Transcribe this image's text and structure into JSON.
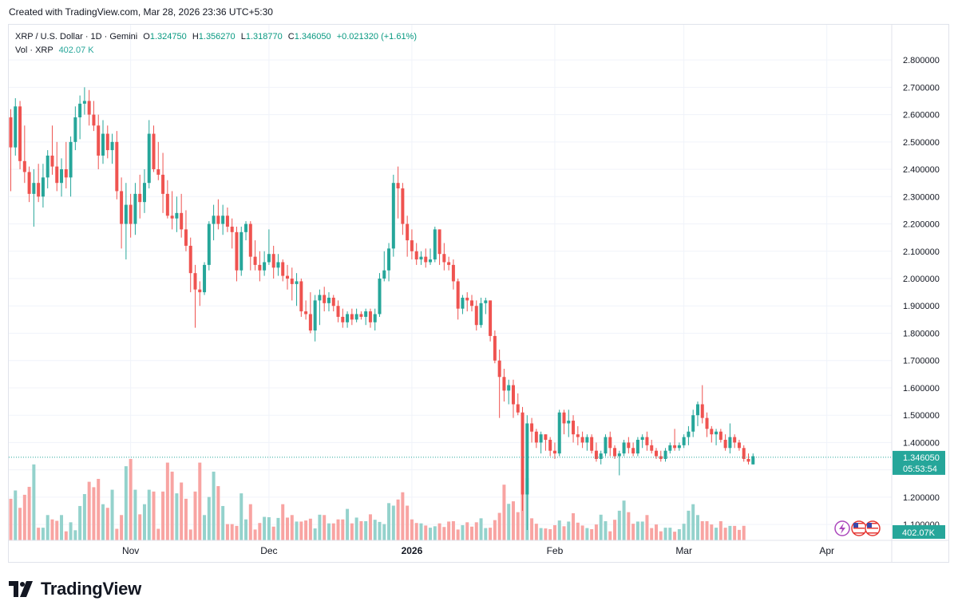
{
  "header": {
    "created": "Created with TradingView.com, Mar 28, 2026 23:36 UTC+5:30"
  },
  "legend": {
    "title": "XRP / U.S. Dollar · 1D · Gemini",
    "open_label": "O",
    "open": "1.324750",
    "high_label": "H",
    "high": "1.356270",
    "low_label": "L",
    "low": "1.318770",
    "close_label": "C",
    "close": "1.346050",
    "change": "+0.021320 (+1.61%)",
    "vol_label": "Vol · XRP",
    "vol_value": "402.07 K"
  },
  "footer": {
    "brand": "TradingView"
  },
  "colors": {
    "up": "#26a69a",
    "down": "#ef5350",
    "up_vol": "#94d2cc",
    "down_vol": "#f8a4a2",
    "grid": "#f0f3fa",
    "price_line": "#26a69a"
  },
  "icons": [
    "lightning-icon",
    "us-flag-icon",
    "us-flag-icon"
  ],
  "chart_data": {
    "type": "candlestick",
    "symbol": "XRP / U.S. Dollar",
    "interval": "1D",
    "exchange": "Gemini",
    "ylim": [
      1.0,
      2.85
    ],
    "y_ticks": [
      "2.800000",
      "2.700000",
      "2.600000",
      "2.500000",
      "2.400000",
      "2.300000",
      "2.200000",
      "2.100000",
      "2.000000",
      "1.900000",
      "1.800000",
      "1.700000",
      "1.600000",
      "1.500000",
      "1.400000",
      "1.300000",
      "1.200000",
      "1.100000"
    ],
    "x_ticks": [
      {
        "label": "Nov",
        "date": "2025-11-01",
        "bold": false
      },
      {
        "label": "Dec",
        "date": "2025-12-01",
        "bold": false
      },
      {
        "label": "2026",
        "date": "2026-01-01",
        "bold": true
      },
      {
        "label": "Feb",
        "date": "2026-02-01",
        "bold": false
      },
      {
        "label": "Mar",
        "date": "2026-03-01",
        "bold": false
      },
      {
        "label": "Apr",
        "date": "2026-04-01",
        "bold": false
      }
    ],
    "first_date": "2025-10-06",
    "last_price": "1.346050",
    "countdown": "05:53:54",
    "volume_label": "402.07K",
    "volume_max_k": 3200,
    "candles": [
      [
        2.59,
        2.62,
        2.32,
        2.48
      ],
      [
        2.48,
        2.66,
        2.45,
        2.63
      ],
      [
        2.63,
        2.65,
        2.4,
        2.43
      ],
      [
        2.43,
        2.56,
        2.35,
        2.39
      ],
      [
        2.39,
        2.41,
        2.28,
        2.31
      ],
      [
        2.31,
        2.4,
        2.19,
        2.35
      ],
      [
        2.35,
        2.42,
        2.28,
        2.3
      ],
      [
        2.3,
        2.42,
        2.26,
        2.37
      ],
      [
        2.37,
        2.47,
        2.33,
        2.45
      ],
      [
        2.45,
        2.56,
        2.38,
        2.41
      ],
      [
        2.41,
        2.5,
        2.32,
        2.35
      ],
      [
        2.35,
        2.44,
        2.3,
        2.4
      ],
      [
        2.4,
        2.5,
        2.33,
        2.37
      ],
      [
        2.37,
        2.52,
        2.3,
        2.5
      ],
      [
        2.5,
        2.63,
        2.47,
        2.59
      ],
      [
        2.59,
        2.67,
        2.51,
        2.64
      ],
      [
        2.64,
        2.7,
        2.6,
        2.65
      ],
      [
        2.65,
        2.69,
        2.56,
        2.6
      ],
      [
        2.6,
        2.65,
        2.54,
        2.56
      ],
      [
        2.56,
        2.6,
        2.4,
        2.45
      ],
      [
        2.45,
        2.58,
        2.42,
        2.53
      ],
      [
        2.53,
        2.56,
        2.44,
        2.47
      ],
      [
        2.47,
        2.53,
        2.42,
        2.5
      ],
      [
        2.5,
        2.54,
        2.29,
        2.32
      ],
      [
        2.32,
        2.37,
        2.11,
        2.2
      ],
      [
        2.2,
        2.35,
        2.07,
        2.27
      ],
      [
        2.27,
        2.31,
        2.15,
        2.2
      ],
      [
        2.2,
        2.35,
        2.16,
        2.31
      ],
      [
        2.31,
        2.38,
        2.22,
        2.28
      ],
      [
        2.28,
        2.4,
        2.24,
        2.35
      ],
      [
        2.35,
        2.58,
        2.33,
        2.53
      ],
      [
        2.53,
        2.56,
        2.39,
        2.4
      ],
      [
        2.4,
        2.5,
        2.36,
        2.38
      ],
      [
        2.38,
        2.46,
        2.24,
        2.31
      ],
      [
        2.31,
        2.36,
        2.22,
        2.23
      ],
      [
        2.23,
        2.32,
        2.18,
        2.22
      ],
      [
        2.22,
        2.3,
        2.17,
        2.24
      ],
      [
        2.24,
        2.31,
        2.15,
        2.18
      ],
      [
        2.18,
        2.25,
        2.1,
        2.12
      ],
      [
        2.12,
        2.15,
        1.95,
        2.02
      ],
      [
        2.02,
        2.05,
        1.82,
        1.96
      ],
      [
        1.96,
        1.99,
        1.9,
        1.95
      ],
      [
        1.95,
        2.06,
        1.94,
        2.05
      ],
      [
        2.05,
        2.21,
        2.03,
        2.2
      ],
      [
        2.2,
        2.27,
        2.14,
        2.23
      ],
      [
        2.23,
        2.29,
        2.18,
        2.2
      ],
      [
        2.2,
        2.27,
        2.16,
        2.23
      ],
      [
        2.23,
        2.26,
        2.17,
        2.19
      ],
      [
        2.19,
        2.22,
        2.11,
        2.17
      ],
      [
        2.17,
        2.19,
        1.99,
        2.03
      ],
      [
        2.03,
        2.19,
        2.01,
        2.17
      ],
      [
        2.17,
        2.21,
        2.14,
        2.2
      ],
      [
        2.2,
        2.21,
        2.03,
        2.08
      ],
      [
        2.08,
        2.14,
        2.03,
        2.05
      ],
      [
        2.05,
        2.1,
        1.99,
        2.03
      ],
      [
        2.03,
        2.1,
        2.01,
        2.06
      ],
      [
        2.06,
        2.18,
        2.05,
        2.09
      ],
      [
        2.09,
        2.12,
        2.0,
        2.04
      ],
      [
        2.04,
        2.09,
        2.01,
        2.06
      ],
      [
        2.06,
        2.07,
        1.99,
        2.01
      ],
      [
        2.01,
        2.05,
        1.96,
        2.0
      ],
      [
        2.0,
        2.04,
        1.92,
        1.98
      ],
      [
        1.98,
        2.02,
        1.9,
        1.99
      ],
      [
        1.99,
        2.0,
        1.86,
        1.88
      ],
      [
        1.88,
        1.92,
        1.85,
        1.87
      ],
      [
        1.87,
        1.95,
        1.8,
        1.81
      ],
      [
        1.81,
        1.94,
        1.77,
        1.92
      ],
      [
        1.92,
        1.96,
        1.83,
        1.94
      ],
      [
        1.94,
        1.97,
        1.88,
        1.91
      ],
      [
        1.91,
        1.95,
        1.88,
        1.93
      ],
      [
        1.93,
        1.94,
        1.88,
        1.9
      ],
      [
        1.9,
        1.92,
        1.84,
        1.86
      ],
      [
        1.86,
        1.89,
        1.82,
        1.84
      ],
      [
        1.84,
        1.88,
        1.82,
        1.87
      ],
      [
        1.87,
        1.89,
        1.83,
        1.85
      ],
      [
        1.85,
        1.89,
        1.84,
        1.87
      ],
      [
        1.87,
        1.88,
        1.85,
        1.86
      ],
      [
        1.86,
        1.89,
        1.83,
        1.88
      ],
      [
        1.88,
        1.89,
        1.82,
        1.84
      ],
      [
        1.84,
        1.89,
        1.81,
        1.87
      ],
      [
        1.87,
        2.02,
        1.86,
        2.0
      ],
      [
        2.0,
        2.1,
        1.99,
        2.03
      ],
      [
        2.03,
        2.13,
        1.99,
        2.11
      ],
      [
        2.11,
        2.38,
        2.08,
        2.35
      ],
      [
        2.35,
        2.41,
        2.22,
        2.33
      ],
      [
        2.33,
        2.35,
        2.16,
        2.2
      ],
      [
        2.2,
        2.23,
        2.08,
        2.14
      ],
      [
        2.14,
        2.18,
        2.07,
        2.1
      ],
      [
        2.1,
        2.13,
        2.05,
        2.07
      ],
      [
        2.07,
        2.1,
        2.05,
        2.08
      ],
      [
        2.08,
        2.11,
        2.04,
        2.06
      ],
      [
        2.06,
        2.11,
        2.05,
        2.07
      ],
      [
        2.07,
        2.19,
        2.06,
        2.18
      ],
      [
        2.18,
        2.18,
        2.05,
        2.09
      ],
      [
        2.09,
        2.13,
        2.03,
        2.06
      ],
      [
        2.06,
        2.08,
        2.03,
        2.05
      ],
      [
        2.05,
        2.07,
        1.96,
        1.99
      ],
      [
        1.99,
        2.0,
        1.85,
        1.89
      ],
      [
        1.89,
        1.94,
        1.87,
        1.93
      ],
      [
        1.93,
        1.95,
        1.88,
        1.92
      ],
      [
        1.92,
        1.94,
        1.88,
        1.9
      ],
      [
        1.9,
        1.92,
        1.81,
        1.83
      ],
      [
        1.83,
        1.93,
        1.82,
        1.91
      ],
      [
        1.91,
        1.93,
        1.87,
        1.92
      ],
      [
        1.92,
        1.92,
        1.77,
        1.79
      ],
      [
        1.79,
        1.81,
        1.69,
        1.7
      ],
      [
        1.7,
        1.74,
        1.49,
        1.64
      ],
      [
        1.64,
        1.67,
        1.55,
        1.59
      ],
      [
        1.59,
        1.63,
        1.54,
        1.61
      ],
      [
        1.61,
        1.63,
        1.49,
        1.54
      ],
      [
        1.54,
        1.58,
        1.5,
        1.51
      ],
      [
        1.51,
        1.53,
        1.15,
        1.21
      ],
      [
        1.21,
        1.5,
        1.08,
        1.47
      ],
      [
        1.47,
        1.49,
        1.4,
        1.44
      ],
      [
        1.44,
        1.45,
        1.38,
        1.4
      ],
      [
        1.4,
        1.44,
        1.36,
        1.43
      ],
      [
        1.43,
        1.43,
        1.37,
        1.41
      ],
      [
        1.41,
        1.42,
        1.35,
        1.37
      ],
      [
        1.37,
        1.4,
        1.34,
        1.36
      ],
      [
        1.36,
        1.52,
        1.35,
        1.51
      ],
      [
        1.51,
        1.52,
        1.43,
        1.47
      ],
      [
        1.47,
        1.52,
        1.42,
        1.48
      ],
      [
        1.48,
        1.5,
        1.4,
        1.43
      ],
      [
        1.43,
        1.46,
        1.39,
        1.42
      ],
      [
        1.42,
        1.44,
        1.38,
        1.4
      ],
      [
        1.4,
        1.43,
        1.37,
        1.42
      ],
      [
        1.42,
        1.43,
        1.36,
        1.37
      ],
      [
        1.37,
        1.4,
        1.33,
        1.34
      ],
      [
        1.34,
        1.37,
        1.32,
        1.36
      ],
      [
        1.36,
        1.43,
        1.35,
        1.42
      ],
      [
        1.42,
        1.44,
        1.35,
        1.38
      ],
      [
        1.38,
        1.39,
        1.34,
        1.35
      ],
      [
        1.35,
        1.37,
        1.28,
        1.36
      ],
      [
        1.36,
        1.41,
        1.35,
        1.4
      ],
      [
        1.4,
        1.42,
        1.36,
        1.38
      ],
      [
        1.38,
        1.4,
        1.35,
        1.36
      ],
      [
        1.36,
        1.42,
        1.35,
        1.41
      ],
      [
        1.41,
        1.43,
        1.38,
        1.42
      ],
      [
        1.42,
        1.44,
        1.37,
        1.39
      ],
      [
        1.39,
        1.41,
        1.36,
        1.37
      ],
      [
        1.37,
        1.38,
        1.34,
        1.35
      ],
      [
        1.35,
        1.37,
        1.33,
        1.34
      ],
      [
        1.34,
        1.38,
        1.33,
        1.37
      ],
      [
        1.37,
        1.4,
        1.36,
        1.39
      ],
      [
        1.39,
        1.45,
        1.37,
        1.38
      ],
      [
        1.38,
        1.4,
        1.37,
        1.39
      ],
      [
        1.39,
        1.43,
        1.38,
        1.42
      ],
      [
        1.42,
        1.46,
        1.39,
        1.44
      ],
      [
        1.44,
        1.52,
        1.42,
        1.5
      ],
      [
        1.5,
        1.55,
        1.46,
        1.54
      ],
      [
        1.54,
        1.61,
        1.47,
        1.49
      ],
      [
        1.49,
        1.51,
        1.42,
        1.45
      ],
      [
        1.45,
        1.46,
        1.4,
        1.43
      ],
      [
        1.43,
        1.45,
        1.39,
        1.44
      ],
      [
        1.44,
        1.45,
        1.4,
        1.41
      ],
      [
        1.41,
        1.43,
        1.37,
        1.38
      ],
      [
        1.38,
        1.47,
        1.36,
        1.42
      ],
      [
        1.42,
        1.43,
        1.38,
        1.4
      ],
      [
        1.4,
        1.41,
        1.37,
        1.38
      ],
      [
        1.38,
        1.39,
        1.33,
        1.34
      ],
      [
        1.34,
        1.36,
        1.32,
        1.33
      ],
      [
        1.32,
        1.36,
        1.32,
        1.35
      ]
    ],
    "volumes": [
      1150,
      1380,
      900,
      1260,
      1480,
      2100,
      350,
      350,
      700,
      580,
      540,
      700,
      250,
      500,
      280,
      950,
      1280,
      1620,
      1470,
      1700,
      1000,
      900,
      1400,
      320,
      700,
      2050,
      2250,
      1400,
      720,
      1000,
      1400,
      1350,
      320,
      1350,
      2150,
      1900,
      1300,
      1600,
      1150,
      300,
      1350,
      2150,
      700,
      1200,
      1900,
      1500,
      950,
      450,
      450,
      400,
      1300,
      580,
      1000,
      300,
      480,
      650,
      640,
      380,
      620,
      1000,
      630,
      700,
      520,
      520,
      550,
      600,
      330,
      710,
      700,
      470,
      470,
      580,
      580,
      870,
      470,
      630,
      530,
      530,
      720,
      570,
      510,
      450,
      1030,
      960,
      1130,
      1330,
      960,
      580,
      480,
      470,
      410,
      350,
      390,
      470,
      370,
      520,
      530,
      300,
      420,
      500,
      380,
      500,
      610,
      340,
      350,
      560,
      760,
      1540,
      1010,
      1080,
      780,
      1730,
      1720,
      610,
      460,
      340,
      330,
      310,
      420,
      550,
      390,
      520,
      750,
      490,
      410,
      340,
      310,
      440,
      710,
      530,
      250,
      570,
      820,
      1100,
      780,
      460,
      520,
      520,
      700,
      340,
      440,
      250,
      350,
      350,
      240,
      310,
      460,
      820,
      1000,
      700,
      530,
      530,
      440,
      350,
      530,
      350,
      400,
      400,
      290,
      402
    ]
  }
}
